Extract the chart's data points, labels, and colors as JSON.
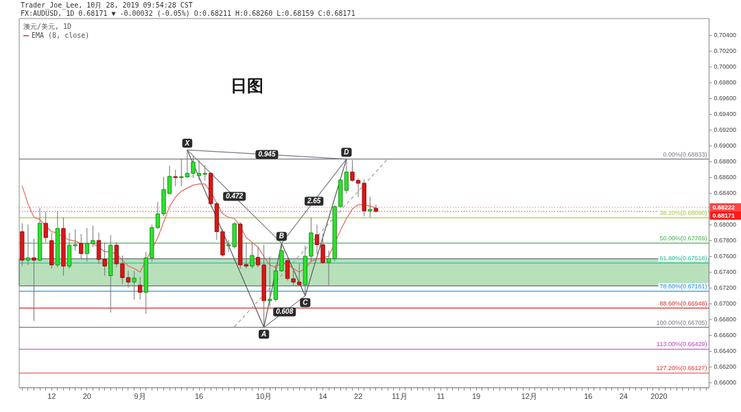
{
  "chart_data": {
    "type": "candlestick",
    "title": "日图",
    "subtitle": "澳元/美元, 1D",
    "annotations": [
      "Trader_Joe_Lee, 10月 28, 2019 09:54:28 CST",
      "FX:AUDUSD, 1D 0.68171 ▼ -0.00032 (-0.05%) O:0.68211 H:0.68260 L:0.68159 C:0.68171",
      {
        "text": "0.472",
        "y": 0.6836
      },
      {
        "text": "0.945",
        "y": 0.6889
      },
      {
        "text": "0.608",
        "y": 0.669
      },
      {
        "text": "2.65",
        "y": 0.683
      }
    ],
    "categories": [
      null,
      null,
      null,
      null,
      null,
      "12",
      null,
      null,
      null,
      null,
      null,
      "20",
      null,
      null,
      null,
      null,
      null,
      null,
      null,
      null,
      "9月",
      null,
      null,
      null,
      null,
      null,
      null,
      null,
      null,
      null,
      "16",
      null,
      null,
      null,
      null,
      null,
      null,
      null,
      null,
      null,
      null,
      "10月",
      null,
      null,
      null,
      null,
      null,
      null,
      null,
      null,
      null,
      "14",
      null,
      null,
      null,
      null,
      null,
      "22",
      null,
      null,
      null,
      null,
      null,
      null,
      "11月",
      null,
      null,
      null,
      null,
      null,
      null,
      "11",
      null,
      null,
      null,
      null,
      null,
      "19",
      null,
      null,
      null,
      null,
      null,
      null,
      null,
      null,
      "12月",
      null,
      null,
      null,
      null,
      null,
      null,
      null,
      null,
      null,
      "16",
      null,
      null,
      null,
      null,
      null,
      "24",
      null,
      null,
      null,
      null,
      null,
      "2020",
      null,
      null,
      null,
      null,
      null,
      null,
      null,
      null
    ],
    "ohlc": [
      [
        0.67915,
        0.68021,
        0.67479,
        0.67554
      ],
      [
        0.67554,
        0.68006,
        0.67494,
        0.67584
      ],
      [
        0.67584,
        0.67825,
        0.66786,
        0.67554
      ],
      [
        0.67554,
        0.68217,
        0.67539,
        0.68021
      ],
      [
        0.68021,
        0.68172,
        0.6778,
        0.6784
      ],
      [
        0.67801,
        0.679,
        0.67449,
        0.67494
      ],
      [
        0.67494,
        0.68172,
        0.67464,
        0.67955
      ],
      [
        0.67955,
        0.68096,
        0.67358,
        0.67479
      ],
      [
        0.67479,
        0.679,
        0.67449,
        0.67744
      ],
      [
        0.67744,
        0.67945,
        0.67674,
        0.6775
      ],
      [
        0.67765,
        0.67885,
        0.67569,
        0.67638
      ],
      [
        0.67638,
        0.6796,
        0.67539,
        0.67765
      ],
      [
        0.67765,
        0.67991,
        0.6772,
        0.67804
      ],
      [
        0.67804,
        0.679,
        0.67509,
        0.67563
      ],
      [
        0.67566,
        0.6778,
        0.67358,
        0.67479
      ],
      [
        0.67358,
        0.6787,
        0.66891,
        0.67744
      ],
      [
        0.67744,
        0.6778,
        0.67464,
        0.67509
      ],
      [
        0.67509,
        0.67614,
        0.67253,
        0.67334
      ],
      [
        0.67334,
        0.67418,
        0.67208,
        0.67277
      ],
      [
        0.67277,
        0.67418,
        0.67057,
        0.67328
      ],
      [
        0.67238,
        0.67343,
        0.67057,
        0.67147
      ],
      [
        0.67147,
        0.67659,
        0.66876,
        0.67584
      ],
      [
        0.67584,
        0.68006,
        0.67539,
        0.67967
      ],
      [
        0.67967,
        0.68292,
        0.67945,
        0.68141
      ],
      [
        0.68141,
        0.68608,
        0.68111,
        0.68448
      ],
      [
        0.68397,
        0.6875,
        0.68382,
        0.68614
      ],
      [
        0.68611,
        0.68698,
        0.68488,
        0.68599
      ],
      [
        0.68599,
        0.6884,
        0.68488,
        0.68611
      ],
      [
        0.68608,
        0.68948,
        0.68593,
        0.68653
      ],
      [
        0.68653,
        0.68864,
        0.68593,
        0.68795
      ],
      [
        0.68623,
        0.68819,
        0.68563,
        0.68653
      ],
      [
        0.68644,
        0.68759,
        0.68563,
        0.68653
      ],
      [
        0.68653,
        0.68668,
        0.68232,
        0.68268
      ],
      [
        0.68268,
        0.68292,
        0.6781,
        0.67915
      ],
      [
        0.67915,
        0.67945,
        0.67599,
        0.6762
      ],
      [
        0.67735,
        0.6781,
        0.67659,
        0.6775
      ],
      [
        0.67726,
        0.68036,
        0.67704,
        0.68015
      ],
      [
        0.68012,
        0.68036,
        0.67449,
        0.67494
      ],
      [
        0.675,
        0.6778,
        0.67449,
        0.67479
      ],
      [
        0.67479,
        0.6778,
        0.67449,
        0.67614
      ],
      [
        0.6759,
        0.6772,
        0.67464,
        0.67494
      ],
      [
        0.67494,
        0.6775,
        0.66705,
        0.67042
      ],
      [
        0.67042,
        0.676,
        0.66967,
        0.6706
      ],
      [
        0.67057,
        0.67494,
        0.67027,
        0.67419
      ],
      [
        0.67419,
        0.67769,
        0.67404,
        0.67675
      ],
      [
        0.67548,
        0.67569,
        0.67298,
        0.67322
      ],
      [
        0.67319,
        0.67419,
        0.67238,
        0.67277
      ],
      [
        0.67277,
        0.67509,
        0.67223,
        0.67244
      ],
      [
        0.67244,
        0.67735,
        0.67103,
        0.67605
      ],
      [
        0.67605,
        0.68096,
        0.67539,
        0.679
      ],
      [
        0.67876,
        0.68006,
        0.6763,
        0.6775
      ],
      [
        0.6775,
        0.67885,
        0.67509,
        0.67524
      ],
      [
        0.67524,
        0.67675,
        0.67238,
        0.67575
      ],
      [
        0.67575,
        0.68247,
        0.67539,
        0.68232
      ],
      [
        0.68232,
        0.68593,
        0.68217,
        0.68569
      ],
      [
        0.68437,
        0.68833,
        0.68397,
        0.68669
      ],
      [
        0.68669,
        0.68819,
        0.68548,
        0.68563
      ],
      [
        0.68563,
        0.68593,
        0.68352,
        0.68527
      ],
      [
        0.68527,
        0.68578,
        0.68111,
        0.68178
      ],
      [
        0.68178,
        0.68358,
        0.68096,
        0.68196
      ],
      [
        0.68211,
        0.6826,
        0.68159,
        0.68171
      ],
      null,
      null,
      null,
      null,
      null,
      null,
      null,
      null,
      null,
      null,
      null,
      null,
      null,
      null,
      null,
      null,
      null,
      null,
      null,
      null,
      null,
      null,
      null,
      null,
      null,
      null,
      null,
      null,
      null,
      null,
      null,
      null,
      null,
      null,
      null,
      null,
      null,
      null,
      null,
      null,
      null,
      null,
      null,
      null,
      null,
      null,
      null,
      null,
      null,
      null,
      null,
      null,
      null,
      null,
      null,
      null
    ],
    "series": [
      {
        "type": "line",
        "name": "EMA (8, close)",
        "color": "#e8625f",
        "values": [
          0.68494,
          0.68262,
          0.68096,
          0.68066,
          0.6799,
          0.67915,
          0.679,
          0.6784,
          0.6781,
          0.67795,
          0.67765,
          0.67765,
          0.67765,
          0.6772,
          0.6766,
          0.6766,
          0.6763,
          0.67554,
          0.67479,
          0.67449,
          0.67404,
          null,
          null,
          0.6784,
          0.68036,
          0.68232,
          0.68352,
          0.68427,
          0.68466,
          0.68503,
          0.68518,
          0.68518,
          0.68412,
          0.68277,
          0.68141,
          0.68096,
          0.68081,
          0.67975,
          0.6784,
          0.6778,
          0.6772,
          0.67599,
          0.67494,
          0.67464,
          0.67524,
          0.67494,
          0.67449,
          0.67404,
          0.67449,
          0.67539,
          0.67569,
          0.67584,
          0.67605,
          null,
          0.67931,
          0.68081,
          0.68202,
          0.68256,
          0.68256,
          0.68238,
          0.68217,
          null,
          null,
          null,
          null,
          null,
          null,
          null,
          null,
          null,
          null,
          null,
          null,
          null,
          null,
          null,
          null,
          null,
          null,
          null,
          null,
          null,
          null,
          null,
          null,
          null,
          null,
          null,
          null,
          null,
          null,
          null,
          null,
          null,
          null,
          null,
          null,
          null,
          null,
          null,
          null,
          null,
          null,
          null,
          null,
          null,
          null,
          null,
          null,
          null,
          null,
          null,
          null,
          null,
          null,
          null,
          null
        ]
      },
      {
        "type": "line",
        "color": "#555555",
        "values": [
          null,
          null,
          null,
          null,
          null,
          null,
          null,
          null,
          null,
          null,
          null,
          null,
          null,
          null,
          null,
          null,
          null,
          null,
          null,
          null,
          null,
          null,
          null,
          null,
          null,
          null,
          null,
          null,
          0.68948,
          null,
          null,
          null,
          null,
          null,
          null,
          null,
          null,
          null,
          null,
          null,
          null,
          0.66705,
          null,
          null,
          0.67769,
          null,
          null,
          null,
          0.67103,
          null,
          null,
          null,
          null,
          null,
          null,
          0.68833,
          null,
          null,
          null,
          null,
          null,
          null,
          null,
          null,
          null,
          null,
          null,
          null,
          null,
          null,
          null,
          null,
          null,
          null,
          null,
          null,
          null,
          null,
          null,
          null,
          null,
          null,
          null,
          null,
          null,
          null,
          null,
          null,
          null,
          null,
          null,
          null,
          null,
          null,
          null,
          null,
          null,
          null,
          null,
          null,
          null,
          null,
          null,
          null,
          null,
          null,
          null,
          null,
          null,
          null,
          null,
          null,
          null,
          null,
          null,
          null,
          null
        ],
        "value_labels": [
          null,
          null,
          null,
          null,
          null,
          null,
          null,
          null,
          null,
          null,
          null,
          null,
          null,
          null,
          null,
          null,
          null,
          null,
          null,
          null,
          null,
          null,
          null,
          null,
          null,
          null,
          null,
          null,
          "X",
          null,
          null,
          null,
          null,
          null,
          null,
          null,
          null,
          null,
          null,
          null,
          null,
          "A",
          null,
          null,
          "B",
          null,
          null,
          null,
          "C",
          null,
          null,
          null,
          null,
          null,
          null,
          "D",
          null,
          null,
          null,
          null,
          null,
          null,
          null,
          null,
          null,
          null,
          null,
          null,
          null,
          null,
          null,
          null,
          null,
          null,
          null,
          null,
          null,
          null,
          null,
          null,
          null,
          null,
          null,
          null,
          null,
          null,
          null,
          null,
          null,
          null,
          null,
          null,
          null,
          null,
          null,
          null,
          null,
          null,
          null,
          null,
          null,
          null,
          null,
          null,
          null,
          null,
          null,
          null,
          null,
          null,
          null,
          null,
          null,
          null,
          null,
          null,
          null
        ]
      },
      {
        "type": "line",
        "color": "#787b86",
        "values": [
          null,
          null,
          null,
          null,
          null,
          null,
          null,
          null,
          null,
          null,
          null,
          null,
          null,
          null,
          null,
          null,
          null,
          null,
          null,
          null,
          null,
          null,
          null,
          null,
          null,
          null,
          null,
          null,
          0.68948,
          null,
          null,
          null,
          null,
          null,
          null,
          null,
          null,
          null,
          null,
          null,
          null,
          null,
          null,
          null,
          0.67769,
          null,
          null,
          null,
          null,
          null,
          null,
          null,
          null,
          null,
          null,
          null,
          null,
          null,
          null,
          null,
          null,
          null,
          null,
          null,
          null,
          null,
          null,
          null,
          null,
          null,
          null,
          null,
          null,
          null,
          null,
          null,
          null,
          null,
          null,
          null,
          null,
          null,
          null,
          null,
          null,
          null,
          null,
          null,
          null,
          null,
          null,
          null,
          null,
          null,
          null,
          null,
          null,
          null,
          null,
          null,
          null,
          null,
          null,
          null,
          null,
          null,
          null,
          null,
          null,
          null,
          null,
          null,
          null,
          null,
          null,
          null,
          null
        ]
      },
      {
        "type": "line",
        "color": "#787b86",
        "values": [
          null,
          null,
          null,
          null,
          null,
          null,
          null,
          null,
          null,
          null,
          null,
          null,
          null,
          null,
          null,
          null,
          null,
          null,
          null,
          null,
          null,
          null,
          null,
          null,
          null,
          null,
          null,
          null,
          0.68948,
          null,
          null,
          null,
          null,
          null,
          null,
          null,
          null,
          null,
          null,
          null,
          null,
          null,
          null,
          null,
          null,
          null,
          null,
          null,
          null,
          null,
          null,
          null,
          null,
          null,
          null,
          0.68833,
          null,
          null,
          null,
          null,
          null,
          null,
          null,
          null,
          null,
          null,
          null,
          null,
          null,
          null,
          null,
          null,
          null,
          null,
          null,
          null,
          null,
          null,
          null,
          null,
          null,
          null,
          null,
          null,
          null,
          null,
          null,
          null,
          null,
          null,
          null,
          null,
          null,
          null,
          null,
          null,
          null,
          null,
          null,
          null,
          null,
          null,
          null,
          null,
          null,
          null,
          null,
          null,
          null,
          null,
          null,
          null,
          null,
          null,
          null,
          null,
          null
        ]
      },
      {
        "type": "line",
        "color": "#787b86",
        "values": [
          null,
          null,
          null,
          null,
          null,
          null,
          null,
          null,
          null,
          null,
          null,
          null,
          null,
          null,
          null,
          null,
          null,
          null,
          null,
          null,
          null,
          null,
          null,
          null,
          null,
          null,
          null,
          null,
          null,
          null,
          null,
          null,
          null,
          null,
          null,
          null,
          null,
          null,
          null,
          null,
          null,
          0.66705,
          null,
          null,
          null,
          null,
          null,
          null,
          0.67103,
          null,
          null,
          null,
          null,
          null,
          null,
          null,
          null,
          null,
          null,
          null,
          null,
          null,
          null,
          null,
          null,
          null,
          null,
          null,
          null,
          null,
          null,
          null,
          null,
          null,
          null,
          null,
          null,
          null,
          null,
          null,
          null,
          null,
          null,
          null,
          null,
          null,
          null,
          null,
          null,
          null,
          null,
          null,
          null,
          null,
          null,
          null,
          null,
          null,
          null,
          null,
          null,
          null,
          null,
          null,
          null,
          null,
          null,
          null,
          null,
          null,
          null,
          null,
          null,
          null,
          null,
          null,
          null
        ]
      },
      {
        "type": "line",
        "color": "#787b86",
        "values": [
          null,
          null,
          null,
          null,
          null,
          null,
          null,
          null,
          null,
          null,
          null,
          null,
          null,
          null,
          null,
          null,
          null,
          null,
          null,
          null,
          null,
          null,
          null,
          null,
          null,
          null,
          null,
          null,
          null,
          null,
          null,
          null,
          null,
          null,
          null,
          null,
          null,
          null,
          null,
          null,
          null,
          null,
          null,
          null,
          0.67769,
          null,
          null,
          null,
          null,
          null,
          null,
          null,
          null,
          null,
          null,
          0.68833,
          null,
          null,
          null,
          null,
          null,
          null,
          null,
          null,
          null,
          null,
          null,
          null,
          null,
          null,
          null,
          null,
          null,
          null,
          null,
          null,
          null,
          null,
          null,
          null,
          null,
          null,
          null,
          null,
          null,
          null,
          null,
          null,
          null,
          null,
          null,
          null,
          null,
          null,
          null,
          null,
          null,
          null,
          null,
          null,
          null,
          null,
          null,
          null,
          null,
          null,
          null,
          null,
          null,
          null,
          null,
          null,
          null,
          null,
          null,
          null,
          null
        ]
      },
      {
        "type": "line",
        "color": "#9e9e9e",
        "line_style": "dashed",
        "values": [
          null,
          null,
          null,
          null,
          null,
          null,
          null,
          null,
          null,
          null,
          null,
          null,
          null,
          null,
          null,
          null,
          null,
          null,
          null,
          null,
          null,
          null,
          null,
          null,
          null,
          null,
          null,
          null,
          null,
          null,
          null,
          null,
          null,
          null,
          null,
          null,
          0.66711,
          null,
          null,
          null,
          null,
          null,
          null,
          null,
          null,
          null,
          null,
          null,
          null,
          null,
          null,
          null,
          null,
          null,
          null,
          null,
          null,
          null,
          null,
          null,
          null,
          null,
          0.68834,
          null,
          null,
          null,
          null,
          null,
          null,
          null,
          null,
          null,
          null,
          null,
          null,
          null,
          null,
          null,
          null,
          null,
          null,
          null,
          null,
          null,
          null,
          null,
          null,
          null,
          null,
          null,
          null,
          null,
          null,
          null,
          null,
          null,
          null,
          null,
          null,
          null,
          null,
          null,
          null,
          null,
          null,
          null,
          null,
          null,
          null,
          null,
          null,
          null,
          null,
          null,
          null,
          null,
          null
        ]
      }
    ],
    "ylim": [
      0.6594,
      0.7061
    ],
    "yticks": [
      {
        "value": 0.66,
        "label": "0.66000"
      },
      {
        "value": 0.662,
        "label": "0.66200"
      },
      {
        "value": 0.664,
        "label": "0.66400"
      },
      {
        "value": 0.666,
        "label": "0.66600"
      },
      {
        "value": 0.668,
        "label": "0.66800"
      },
      {
        "value": 0.67,
        "label": "0.67000"
      },
      {
        "value": 0.672,
        "label": "0.67200"
      },
      {
        "value": 0.674,
        "label": "0.67400"
      },
      {
        "value": 0.676,
        "label": "0.67600"
      },
      {
        "value": 0.678,
        "label": "0.67800"
      },
      {
        "value": 0.68,
        "label": "0.68000"
      },
      {
        "value": 0.684,
        "label": "0.68400"
      },
      {
        "value": 0.686,
        "label": "0.68600"
      },
      {
        "value": 0.688,
        "label": "0.68800"
      },
      {
        "value": 0.69,
        "label": "0.69000"
      },
      {
        "value": 0.692,
        "label": "0.69200"
      },
      {
        "value": 0.694,
        "label": "0.69400"
      },
      {
        "value": 0.696,
        "label": "0.69600"
      },
      {
        "value": 0.698,
        "label": "0.69800"
      },
      {
        "value": 0.7,
        "label": "0.70000"
      },
      {
        "value": 0.702,
        "label": "0.70200"
      },
      {
        "value": 0.704,
        "label": "0.70400"
      }
    ],
    "ref_lines": [
      {
        "axis": "y",
        "value": 0.68833,
        "label": "0.00%(0.68833)",
        "color": "#787b86"
      },
      {
        "axis": "y",
        "value": 0.6809,
        "label": "38.20%(0.68090)",
        "color": "#a8c83c"
      },
      {
        "axis": "y",
        "value": 0.67769,
        "label": "50.00%(0.67769)",
        "color": "#4caf50"
      },
      {
        "axis": "y",
        "value": 0.67518,
        "label": "61.80%(0.67518)",
        "color": "#26c6a0"
      },
      {
        "axis": "y",
        "value": 0.67161,
        "label": "78.60%(0.67161)",
        "color": "#2196f3"
      },
      {
        "axis": "y",
        "value": 0.66948,
        "label": "88.60%(0.66948)",
        "color": "#d32f2f"
      },
      {
        "axis": "y",
        "value": 0.66705,
        "label": "100.00%(0.66705)",
        "color": "#787b86"
      },
      {
        "axis": "y",
        "value": 0.66429,
        "label": "113.00%(0.66429)",
        "color": "#c040c0"
      },
      {
        "axis": "y",
        "value": 0.66127,
        "label": "127.20%(0.66127)",
        "color": "#e53935"
      },
      {
        "axis": "y",
        "value": 0.68222,
        "label": "0.68222",
        "color": "#ff4444",
        "line_style": "dotted"
      },
      {
        "axis": "y",
        "value": 0.68171,
        "label": "0.68171",
        "color": "#ff1a1a",
        "line_style": "dotted"
      }
    ],
    "bands": [
      {
        "axis": "y",
        "from": 0.67229,
        "to": 0.67572,
        "color": "#7cc784"
      }
    ],
    "legend": "top left",
    "marker": "none"
  }
}
